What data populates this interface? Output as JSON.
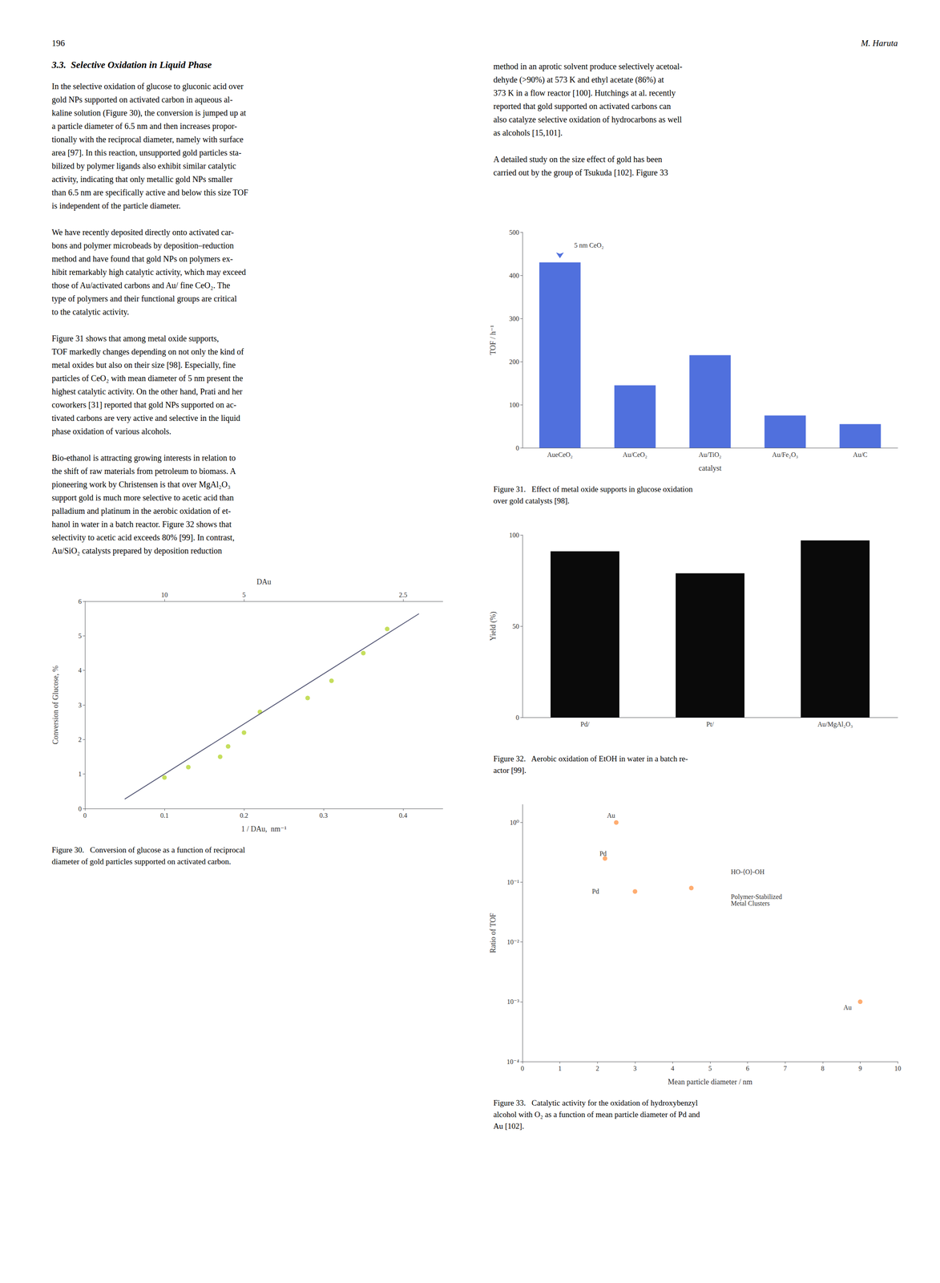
{
  "page": {
    "header_left": "196",
    "header_right": "M. Haruta",
    "section_title": "3.3.  Selective Oxidation in Liquid Phase",
    "left_column": [
      [
        "In the selective oxidation of glucose to gluconic acid over",
        "gold NPs supported on activated carbon in aqueous al-",
        "kaline solution (Figure 30), the conversion is jumped up at",
        "a particle diameter of 6.5 nm and then increases propor-",
        "tionally with the reciprocal diameter, namely with surface",
        "area [97]. In this reaction, unsupported gold particles sta-",
        "bilized by polymer ligands also exhibit similar catalytic",
        "activity, indicating that only metallic gold NPs smaller",
        "than 6.5 nm are specifically active and below this size TOF",
        "is independent of the particle diameter."
      ],
      [
        "We have recently deposited directly onto activated car-",
        "bons and polymer microbeads by deposition–reduction",
        "method and have found that gold NPs on polymers ex-",
        "hibit remarkably high catalytic activity, which may exceed",
        "those of Au/activated carbons and Au/ fine CeO₂. The",
        "type of polymers and their functional groups are critical",
        "to the catalytic activity."
      ],
      [
        "Figure 31 shows that among metal oxide supports,",
        "TOF markedly changes depending on not only the kind of",
        "metal oxides but also on their size [98]. Especially, fine",
        "particles of CeO₂ with mean diameter of 5 nm present the",
        "highest catalytic activity. On the other hand, Prati and her",
        "coworkers [31] reported that gold NPs supported on ac-",
        "tivated carbons are very active and selective in the liquid",
        "phase oxidation of various alcohols."
      ],
      [
        "Bio-ethanol is attracting growing interests in relation to",
        "the shift of raw materials from petroleum to biomass. A",
        "pioneering work by Christensen is that over MgAl₂O₃",
        "support gold is much more selective to acetic acid than",
        "palladium and platinum in the aerobic oxidation of et-",
        "hanol in water in a batch reactor. Figure 32 shows that",
        "selectivity to acetic acid exceeds 80% [99]. In contrast,",
        "Au/SiO₂ catalysts prepared by deposition reduction"
      ]
    ],
    "right_column": [
      [
        "method in an aprotic solvent produce selectively acetoal-",
        "dehyde (>90%) at 573 K and ethyl acetate (86%) at",
        "373 K in a flow reactor [100]. Hutchings at al. recently",
        "reported that gold supported on activated carbons can",
        "also catalyze selective oxidation of hydrocarbons as well",
        "as alcohols [15,101]."
      ],
      [
        "A detailed study on the size effect of gold has been",
        "carried out by the group of Tsukuda [102]. Figure 33"
      ]
    ]
  },
  "chart_data": [
    {
      "type": "bar",
      "title": "Figure 31.   Effect of metal oxide supports in glucose oxidation\nover gold catalysts [98].",
      "categories": [
        "AueCeO₂",
        "Au/CeO₂",
        "Au/TiO₂",
        "Au/Fe₂O₃",
        "Au/C"
      ],
      "values": [
        430,
        145,
        215,
        75,
        55
      ],
      "xlabel": "catalyst",
      "ylabel": "TOF / h⁻¹",
      "ylim": [
        0,
        500
      ],
      "yticks": [
        0,
        100,
        200,
        300,
        400,
        500
      ],
      "annotations": [
        {
          "text": "5 nm CeO₂",
          "x": "AueCeO₂",
          "y": 430
        }
      ],
      "grid": false
    },
    {
      "type": "bar",
      "title": "Figure 32.   Aerobic oxidation of EtOH in water in a batch re-\nactor [99].",
      "categories": [
        "Pd/",
        "Pt/",
        "Au/MgAl₂O₃"
      ],
      "values": [
        91,
        79,
        97
      ],
      "color": "#0a0a0a",
      "ylabel": "Yield (%)",
      "ylim": [
        0,
        100
      ],
      "yticks": [
        0,
        50,
        100
      ],
      "grid": false
    },
    {
      "type": "scatter",
      "title": "Figure 30.   Conversion of glucose as a function of reciprocal\ndiameter of gold particles supported on activated carbon.",
      "series": [
        {
          "type": "scatter",
          "x": [
            0.1,
            0.13,
            0.17,
            0.18,
            0.2,
            0.22,
            0.28,
            0.31,
            0.35,
            0.38
          ],
          "values": [
            0.9,
            1.2,
            1.5,
            1.8,
            2.2,
            2.8,
            3.2,
            3.7,
            4.5,
            5.2
          ]
        },
        {
          "type": "line",
          "x": [
            0.05,
            0.42
          ],
          "values": [
            0.275,
            5.64
          ]
        }
      ],
      "xlabel": "1 / DAu,  nm⁻¹",
      "ylabel": "Conversion of Glucose, %",
      "xlim": [
        0,
        0.45
      ],
      "xticks": [
        0,
        0.1,
        0.2,
        0.3,
        0.4
      ],
      "ylim": [
        0,
        6
      ],
      "yticks": [
        0,
        1,
        2,
        3,
        4,
        5,
        6
      ],
      "x2label": "DAu",
      "x2lim": [
        0,
        0.45
      ],
      "x2ticks": [
        {
          "value": 0.1,
          "label": "10"
        },
        {
          "value": 0.2,
          "label": "5"
        },
        {
          "value": 0.4,
          "label": "2.5"
        }
      ],
      "grid": false
    },
    {
      "type": "scatter",
      "log": "y",
      "title": "Figure 33.   Catalytic activity for the oxidation of hydroxybenzyl\nalcohol with O₂ as a function of mean particle diameter of Pd and\nAu [102].",
      "x": [
        2.5,
        9.0,
        2.2,
        4.5,
        3.0
      ],
      "values": [
        1.0,
        0.001,
        0.25,
        0.08,
        0.07
      ],
      "xlabel": "Mean particle diameter / nm",
      "ylabel": "Ratio of TOF",
      "xlim": [
        0,
        10
      ],
      "xticks": [
        0,
        1,
        2,
        3,
        4,
        5,
        6,
        7,
        8,
        9,
        10
      ],
      "ylim": [
        0.0001,
        2
      ],
      "yticks": [
        {
          "value": 0.0001,
          "label": "10⁻⁴"
        },
        {
          "value": 0.001,
          "label": "10⁻³"
        },
        {
          "value": 0.01,
          "label": "10⁻²"
        },
        {
          "value": 0.1,
          "label": "10⁻¹"
        },
        {
          "value": 1,
          "label": "10⁰"
        }
      ],
      "annotations": [
        {
          "text": "Au",
          "x": 2.2,
          "y": 1.3
        },
        {
          "text": "Pd",
          "x": 2.0,
          "y": 0.3
        },
        {
          "text": "Pd",
          "x": 1.8,
          "y": 0.07
        },
        {
          "text": "Au",
          "x": 8.5,
          "y": 0.0008
        },
        {
          "text": "HO-⟨O⟩-OH",
          "x": 5.5,
          "y": 0.15
        },
        {
          "text": "Polymer-Stabilized\nMetal Clusters",
          "x": 5.5,
          "y": 0.05
        }
      ],
      "grid": false
    }
  ]
}
